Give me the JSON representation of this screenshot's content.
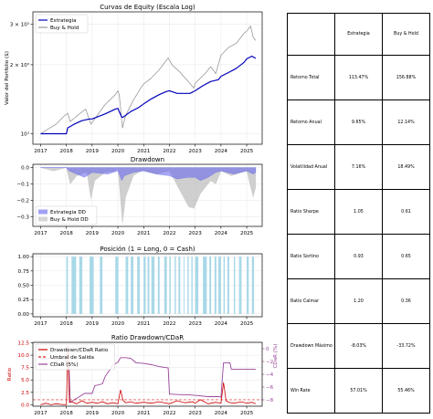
{
  "chart_data": [
    {
      "type": "line",
      "title": "Curvas de Equity (Escala Log)",
      "ylabel": "Valor del Portfolio ($)",
      "yscale": "log",
      "ylim": [
        900,
        3400
      ],
      "yticks": [
        {
          "value": 1000,
          "label": "10³"
        },
        {
          "value": 2000,
          "label": "2 × 10³"
        },
        {
          "value": 3000,
          "label": "3 × 10³"
        }
      ],
      "xlim": [
        2016.7,
        2025.6
      ],
      "xticks": [
        "2017",
        "2018",
        "2019",
        "2020",
        "2021",
        "2022",
        "2023",
        "2024",
        "2025"
      ],
      "legend_position": "upper-left",
      "grid": true,
      "series": [
        {
          "name": "Estrategia",
          "color": "#0000bb",
          "x": [
            2017.0,
            2017.5,
            2018.0,
            2018.05,
            2018.3,
            2018.6,
            2018.9,
            2019.0,
            2019.5,
            2019.9,
            2020.0,
            2020.05,
            2020.15,
            2020.2,
            2020.5,
            2020.8,
            2021.0,
            2021.3,
            2021.6,
            2021.9,
            2022.0,
            2022.3,
            2022.5,
            2022.8,
            2023.0,
            2023.3,
            2023.6,
            2023.9,
            2024.0,
            2024.3,
            2024.6,
            2024.9,
            2025.0,
            2025.2,
            2025.35
          ],
          "y": [
            1000,
            1000,
            1000,
            1060,
            1100,
            1140,
            1160,
            1160,
            1220,
            1280,
            1290,
            1250,
            1180,
            1180,
            1250,
            1300,
            1350,
            1420,
            1480,
            1530,
            1540,
            1500,
            1500,
            1500,
            1540,
            1620,
            1690,
            1720,
            1780,
            1850,
            1930,
            2050,
            2120,
            2180,
            2130
          ]
        },
        {
          "name": "Buy & Hold",
          "color": "#999999",
          "x": [
            2017.0,
            2017.3,
            2017.6,
            2017.9,
            2018.05,
            2018.15,
            2018.5,
            2018.75,
            2018.95,
            2019.0,
            2019.5,
            2019.9,
            2020.0,
            2020.05,
            2020.18,
            2020.3,
            2020.6,
            2020.9,
            2021.0,
            2021.3,
            2021.6,
            2021.95,
            2022.1,
            2022.4,
            2022.75,
            2022.95,
            2023.0,
            2023.4,
            2023.6,
            2023.8,
            2023.95,
            2024.0,
            2024.3,
            2024.6,
            2024.9,
            2025.0,
            2025.15,
            2025.25,
            2025.35
          ],
          "y": [
            1000,
            1050,
            1100,
            1190,
            1230,
            1130,
            1220,
            1280,
            1100,
            1120,
            1340,
            1480,
            1540,
            1480,
            1060,
            1200,
            1400,
            1590,
            1650,
            1750,
            1900,
            2140,
            2000,
            1860,
            1680,
            1580,
            1660,
            1840,
            1960,
            1830,
            2100,
            2200,
            2380,
            2480,
            2750,
            2800,
            2950,
            2640,
            2550
          ]
        }
      ]
    },
    {
      "type": "area",
      "title": "Drawdown",
      "ylim": [
        -0.36,
        0.02
      ],
      "yticks": [
        "0.0",
        "−0.1",
        "−0.2",
        "−0.3"
      ],
      "xlim": [
        2016.7,
        2025.6
      ],
      "xticks": [
        "2017",
        "2018",
        "2019",
        "2020",
        "2021",
        "2022",
        "2023",
        "2024",
        "2025"
      ],
      "legend_position": "lower-left",
      "grid": true,
      "series": [
        {
          "name": "Estrategia DD",
          "color": "#6060ee",
          "x": [
            2017.0,
            2018.0,
            2018.1,
            2018.4,
            2018.7,
            2019.0,
            2019.6,
            2020.0,
            2020.15,
            2020.25,
            2020.6,
            2021.0,
            2021.5,
            2022.0,
            2022.3,
            2022.7,
            2023.0,
            2023.2,
            2023.5,
            2023.8,
            2024.0,
            2024.5,
            2025.0,
            2025.25,
            2025.35
          ],
          "y": [
            0,
            0,
            -0.02,
            -0.04,
            -0.06,
            -0.03,
            -0.04,
            -0.02,
            -0.08,
            -0.05,
            -0.03,
            -0.02,
            -0.04,
            -0.05,
            -0.07,
            -0.06,
            -0.06,
            -0.08,
            -0.06,
            -0.03,
            -0.02,
            -0.04,
            -0.02,
            -0.04,
            -0.03
          ]
        },
        {
          "name": "Buy & Hold DD",
          "color": "#bbbbbb",
          "x": [
            2017.0,
            2017.5,
            2018.0,
            2018.15,
            2018.4,
            2018.8,
            2018.95,
            2019.1,
            2019.5,
            2019.9,
            2020.0,
            2020.18,
            2020.3,
            2020.6,
            2020.9,
            2021.0,
            2021.5,
            2022.0,
            2022.4,
            2022.75,
            2022.95,
            2023.2,
            2023.6,
            2023.8,
            2024.0,
            2024.4,
            2024.8,
            2025.0,
            2025.25,
            2025.35
          ],
          "y": [
            0,
            -0.02,
            0,
            -0.1,
            -0.05,
            -0.03,
            -0.19,
            -0.08,
            -0.03,
            -0.02,
            0,
            -0.34,
            -0.18,
            -0.05,
            -0.02,
            -0.02,
            -0.04,
            -0.02,
            -0.14,
            -0.24,
            -0.25,
            -0.16,
            -0.08,
            -0.1,
            -0.02,
            -0.05,
            -0.03,
            -0.02,
            -0.18,
            -0.12
          ]
        }
      ]
    },
    {
      "type": "bar",
      "title": "Posición (1 = Long, 0 = Cash)",
      "ylim": [
        -0.05,
        1.05
      ],
      "yticks": [
        "0.00",
        "0.25",
        "0.50",
        "0.75",
        "1.00"
      ],
      "xlim": [
        2016.7,
        2025.6
      ],
      "xticks": [
        "2017",
        "2018",
        "2019",
        "2020",
        "2021",
        "2022",
        "2023",
        "2024",
        "2025"
      ],
      "grid": true,
      "color": "#a8d8e8",
      "long_periods": [
        [
          2018.0,
          2018.06
        ],
        [
          2018.2,
          2018.38
        ],
        [
          2018.5,
          2018.62
        ],
        [
          2018.9,
          2019.06
        ],
        [
          2019.3,
          2019.4
        ],
        [
          2019.9,
          2020.02
        ],
        [
          2020.3,
          2020.4
        ],
        [
          2020.5,
          2020.6
        ],
        [
          2020.75,
          2020.85
        ],
        [
          2021.0,
          2021.08
        ],
        [
          2021.15,
          2021.22
        ],
        [
          2021.3,
          2021.42
        ],
        [
          2021.55,
          2021.62
        ],
        [
          2021.8,
          2021.9
        ],
        [
          2022.0,
          2022.05
        ],
        [
          2022.2,
          2022.25
        ],
        [
          2022.35,
          2022.42
        ],
        [
          2022.55,
          2022.58
        ],
        [
          2022.7,
          2022.75
        ],
        [
          2022.85,
          2022.9
        ],
        [
          2023.0,
          2023.12
        ],
        [
          2023.3,
          2023.45
        ],
        [
          2023.55,
          2023.62
        ],
        [
          2023.75,
          2023.82
        ],
        [
          2023.9,
          2024.0
        ],
        [
          2024.1,
          2024.15
        ],
        [
          2024.25,
          2024.32
        ],
        [
          2024.5,
          2024.55
        ],
        [
          2024.7,
          2024.8
        ],
        [
          2025.0,
          2025.08
        ],
        [
          2025.2,
          2025.28
        ]
      ]
    },
    {
      "type": "line",
      "title": "Ratio Drawdown/CDaR",
      "ylabel": "Ratio",
      "y2label": "CDaR (%)",
      "ylim": [
        -0.3,
        12.6
      ],
      "yticks": [
        "0.0",
        "2.5",
        "5.0",
        "7.5",
        "10.0",
        "12.5"
      ],
      "y2lim": [
        -9,
        1
      ],
      "y2ticks": [
        "0",
        "−2",
        "−4",
        "−6",
        "−8"
      ],
      "xlim": [
        2016.7,
        2025.6
      ],
      "xticks": [
        "2017",
        "2018",
        "2019",
        "2020",
        "2021",
        "2022",
        "2023",
        "2024",
        "2025"
      ],
      "legend_position": "upper-left",
      "grid": true,
      "threshold": {
        "name": "Umbral de Salida",
        "value": 1.0,
        "color": "#dd2222"
      },
      "series": [
        {
          "name": "Drawdown/CDaR Ratio",
          "axis": "left",
          "color": "#cc0000",
          "x": [
            2017.0,
            2017.2,
            2017.4,
            2017.6,
            2017.9,
            2018.0,
            2018.06,
            2018.12,
            2018.2,
            2018.4,
            2018.6,
            2018.8,
            2019.0,
            2019.2,
            2019.4,
            2019.6,
            2019.8,
            2020.0,
            2020.1,
            2020.2,
            2020.3,
            2020.5,
            2020.7,
            2021.0,
            2021.3,
            2021.6,
            2022.0,
            2022.3,
            2022.6,
            2022.9,
            2023.0,
            2023.2,
            2023.5,
            2023.8,
            2024.0,
            2024.1,
            2024.2,
            2024.3,
            2024.5,
            2024.8,
            2025.0,
            2025.2,
            2025.35
          ],
          "y": [
            0,
            0.3,
            0,
            0.2,
            0,
            0,
            11.8,
            0.5,
            0.6,
            0.2,
            0.8,
            0.3,
            0.5,
            0.3,
            0.6,
            0.2,
            0.4,
            0.2,
            3.0,
            0.9,
            0.4,
            0.6,
            0.3,
            0.5,
            0.3,
            0.6,
            0.2,
            0.8,
            0.4,
            0.6,
            0.3,
            1.0,
            0.2,
            0.5,
            0.3,
            4.5,
            0.8,
            0.5,
            0.3,
            0.6,
            0.3,
            0.5,
            0.2
          ]
        },
        {
          "name": "CDaR (5%)",
          "axis": "right",
          "color": "#994499",
          "x": [
            2017.0,
            2017.95,
            2018.0,
            2018.1,
            2018.15,
            2018.3,
            2018.55,
            2018.7,
            2019.0,
            2019.1,
            2019.4,
            2019.5,
            2019.8,
            2020.0,
            2020.1,
            2020.3,
            2020.5,
            2020.7,
            2021.0,
            2021.3,
            2021.6,
            2021.95,
            2022.0,
            2022.5,
            2022.7,
            2023.0,
            2023.5,
            2023.9,
            2024.0,
            2024.05,
            2024.1,
            2024.35,
            2024.4,
            2024.7,
            2025.0,
            2025.35
          ],
          "y": [
            -1.5,
            -1.5,
            -2.2,
            -2.8,
            -8.4,
            -8.0,
            -7.4,
            -7.0,
            -7.0,
            -5.8,
            -5.5,
            -4.4,
            -2.6,
            -2.1,
            -1.4,
            -1.4,
            -1.5,
            -2.2,
            -2.3,
            -2.5,
            -2.8,
            -3.0,
            -7.1,
            -7.2,
            -7.2,
            -7.3,
            -7.5,
            -7.5,
            -7.6,
            -4.8,
            -2.2,
            -2.2,
            -3.2,
            -3.2,
            -3.2,
            -3.2
          ]
        }
      ]
    }
  ],
  "stats_table": {
    "headers": [
      "",
      "Estrategia",
      "Buy & Hold"
    ],
    "rows": [
      {
        "metric": "Retorno Total",
        "estrategia": "113.47%",
        "buy_hold": "156.88%"
      },
      {
        "metric": "Retorno Anual",
        "estrategia": "9.65%",
        "buy_hold": "12.14%"
      },
      {
        "metric": "Volatilidad Anual",
        "estrategia": "7.16%",
        "buy_hold": "18.49%"
      },
      {
        "metric": "Ratio Sharpe",
        "estrategia": "1.05",
        "buy_hold": "0.61"
      },
      {
        "metric": "Ratio Sortino",
        "estrategia": "0.93",
        "buy_hold": "0.65"
      },
      {
        "metric": "Ratio Calmar",
        "estrategia": "1.20",
        "buy_hold": "0.36"
      },
      {
        "metric": "Drawdown Máximo",
        "estrategia": "-8.03%",
        "buy_hold": "-33.72%"
      },
      {
        "metric": "Win Rate",
        "estrategia": "57.01%",
        "buy_hold": "55.46%"
      }
    ]
  }
}
